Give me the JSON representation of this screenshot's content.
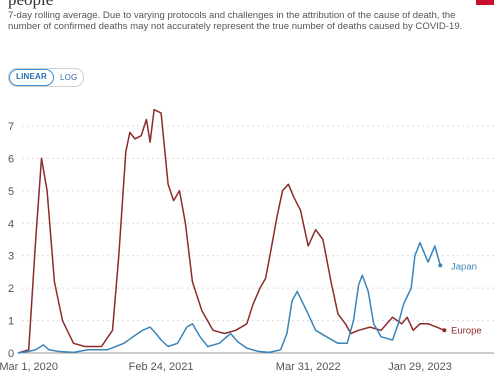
{
  "header": {
    "title_fragment": "people",
    "subtitle": "7-day rolling average. Due to varying protocols and challenges in the attribution of the cause of death, the number of confirmed deaths may not accurately represent the true number of deaths caused by COVID-19."
  },
  "scale_toggle": {
    "options": [
      "LINEAR",
      "LOG"
    ],
    "selected": "LINEAR"
  },
  "colors": {
    "europe": "#8b2b2b",
    "japan": "#3a84b8",
    "accent": "#c8102e"
  },
  "chart_data": {
    "type": "line",
    "xaxis": {
      "ticks": [
        "Mar 1, 2020",
        "Feb 24, 2021",
        "Mar 31, 2022",
        "Jan 29, 2023"
      ],
      "range": [
        "2020-02-01",
        "2023-04-15"
      ]
    },
    "yaxis": {
      "ticks": [
        0,
        1,
        2,
        3,
        4,
        5,
        6,
        7
      ],
      "ylim": [
        0,
        7.8
      ],
      "scale": "linear"
    },
    "grid": "horizontal-dotted",
    "series": [
      {
        "name": "Europe",
        "x": [
          "2020-02-01",
          "2020-03-01",
          "2020-03-20",
          "2020-04-05",
          "2020-04-20",
          "2020-05-10",
          "2020-06-01",
          "2020-07-01",
          "2020-08-01",
          "2020-09-15",
          "2020-10-15",
          "2020-11-01",
          "2020-11-20",
          "2020-12-01",
          "2020-12-15",
          "2021-01-01",
          "2021-01-15",
          "2021-01-25",
          "2021-02-05",
          "2021-02-24",
          "2021-03-15",
          "2021-03-30",
          "2021-04-15",
          "2021-05-01",
          "2021-05-20",
          "2021-06-15",
          "2021-07-15",
          "2021-08-15",
          "2021-09-15",
          "2021-10-15",
          "2021-11-01",
          "2021-11-20",
          "2021-12-05",
          "2021-12-20",
          "2022-01-05",
          "2022-01-20",
          "2022-02-05",
          "2022-02-20",
          "2022-03-10",
          "2022-03-31",
          "2022-04-20",
          "2022-05-10",
          "2022-06-01",
          "2022-06-20",
          "2022-07-10",
          "2022-07-25",
          "2022-08-15",
          "2022-09-15",
          "2022-10-15",
          "2022-11-15",
          "2022-12-10",
          "2022-12-25",
          "2023-01-10",
          "2023-01-29",
          "2023-02-20",
          "2023-03-15",
          "2023-04-05"
        ],
        "values": [
          0,
          0.1,
          3.5,
          6.0,
          5.0,
          2.2,
          1.0,
          0.3,
          0.2,
          0.2,
          0.7,
          3.0,
          6.2,
          6.8,
          6.6,
          6.7,
          7.2,
          6.5,
          7.5,
          7.4,
          5.2,
          4.7,
          5.0,
          4.0,
          2.2,
          1.3,
          0.7,
          0.6,
          0.7,
          0.9,
          1.5,
          2.0,
          2.3,
          3.2,
          4.2,
          5.0,
          5.2,
          4.8,
          4.4,
          3.3,
          3.8,
          3.5,
          2.2,
          1.2,
          0.9,
          0.6,
          0.7,
          0.8,
          0.7,
          1.1,
          0.9,
          1.1,
          0.7,
          0.9,
          0.9,
          0.8,
          0.7
        ]
      },
      {
        "name": "Japan",
        "x": [
          "2020-02-01",
          "2020-03-01",
          "2020-03-20",
          "2020-04-10",
          "2020-04-25",
          "2020-05-20",
          "2020-07-01",
          "2020-08-10",
          "2020-10-01",
          "2020-11-15",
          "2020-12-10",
          "2021-01-05",
          "2021-01-25",
          "2021-02-10",
          "2021-02-24",
          "2021-03-15",
          "2021-04-10",
          "2021-05-05",
          "2021-05-20",
          "2021-06-10",
          "2021-07-01",
          "2021-08-01",
          "2021-09-01",
          "2021-09-20",
          "2021-10-15",
          "2021-11-15",
          "2021-12-15",
          "2022-01-15",
          "2022-02-01",
          "2022-02-15",
          "2022-03-01",
          "2022-03-31",
          "2022-04-20",
          "2022-05-20",
          "2022-06-20",
          "2022-07-15",
          "2022-08-01",
          "2022-08-15",
          "2022-08-25",
          "2022-09-10",
          "2022-09-25",
          "2022-10-15",
          "2022-11-15",
          "2022-12-01",
          "2022-12-15",
          "2023-01-05",
          "2023-01-15",
          "2023-01-29",
          "2023-02-20",
          "2023-03-10",
          "2023-03-25"
        ],
        "values": [
          0,
          0.05,
          0.1,
          0.25,
          0.1,
          0.05,
          0.02,
          0.1,
          0.1,
          0.3,
          0.5,
          0.7,
          0.8,
          0.6,
          0.4,
          0.2,
          0.3,
          0.8,
          0.9,
          0.5,
          0.2,
          0.3,
          0.6,
          0.35,
          0.15,
          0.05,
          0.02,
          0.1,
          0.6,
          1.6,
          1.9,
          1.2,
          0.7,
          0.5,
          0.3,
          0.3,
          1.0,
          2.1,
          2.4,
          1.9,
          0.9,
          0.5,
          0.4,
          0.9,
          1.5,
          2.0,
          3.0,
          3.4,
          2.8,
          3.3,
          2.7
        ]
      }
    ]
  }
}
